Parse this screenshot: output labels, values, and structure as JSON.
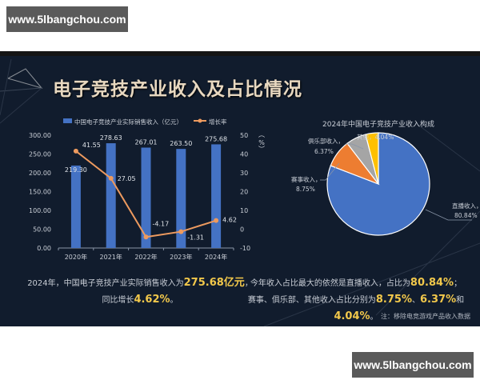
{
  "watermark": {
    "top": "www.5lbangchou.com",
    "bottom": "www.5lbangchou.com"
  },
  "title": "电子竞技产业收入及占比情况",
  "colors": {
    "bar": "#4472c4",
    "line": "#ed9a5f",
    "highlight": "#f2c84b",
    "background": "#111c2d"
  },
  "summary_left": {
    "line1_prefix": "2024年，中国电子竞技产业实际销售收入为",
    "line1_value": "275.68亿元",
    "line1_suffix": "，",
    "line2_prefix": "同比增长",
    "line2_value": "4.62%",
    "line2_suffix": "。"
  },
  "summary_right": {
    "line1_prefix": "今年收入占比最大的依然是直播收入，占比为",
    "line1_value": "80.84%",
    "line1_suffix": "；",
    "line2_prefix": "赛事、俱乐部、其他收入占比分别为",
    "line2_value1": "8.75%",
    "line2_sep1": "、",
    "line2_value2": "6.37%",
    "line2_sep2": "和",
    "line2_value3": "4.04%",
    "line2_suffix": "。"
  },
  "note": "注：移除电竞游戏产品收入数据",
  "chart_data": [
    {
      "type": "bar",
      "title": "",
      "categories": [
        "2020年",
        "2021年",
        "2022年",
        "2023年",
        "2024年"
      ],
      "series": [
        {
          "name": "中国电子竞技产业实际销售收入（亿元）",
          "type": "bar",
          "axis": "left",
          "values": [
            219.3,
            278.63,
            267.01,
            263.5,
            275.68
          ],
          "labels": [
            "219.30",
            "278.63",
            "267.01",
            "263.50",
            "275.68"
          ]
        },
        {
          "name": "增长率",
          "type": "line",
          "axis": "right",
          "values": [
            41.55,
            27.05,
            -4.17,
            -1.31,
            4.62
          ],
          "labels": [
            "41.55",
            "27.05",
            "-4.17",
            "-1.31",
            "4.62"
          ]
        }
      ],
      "y_left": {
        "ticks": [
          "0.00",
          "50.00",
          "100.00",
          "150.00",
          "200.00",
          "250.00",
          "300.00"
        ],
        "ylim": [
          0,
          300
        ]
      },
      "y_right": {
        "label": "（%）",
        "ticks": [
          "-10",
          "0",
          "10",
          "20",
          "30",
          "40",
          "50"
        ],
        "ylim": [
          -10,
          50
        ]
      },
      "legend": {
        "position": "top",
        "items": [
          "中国电子竞技产业实际销售收入（亿元）",
          "增长率"
        ]
      },
      "grid": false
    },
    {
      "type": "pie",
      "title": "2024年中国电子竞技产业收入构成",
      "labels": [
        "直播收入",
        "赛事收入",
        "俱乐部收入",
        "其他"
      ],
      "values": [
        80.84,
        8.75,
        6.37,
        4.04
      ],
      "value_labels": [
        "80.84%",
        "8.75%",
        "6.37%",
        "4.04%"
      ],
      "colors": [
        "#4472c4",
        "#ed7d31",
        "#a5a5a5",
        "#ffc000"
      ]
    }
  ]
}
